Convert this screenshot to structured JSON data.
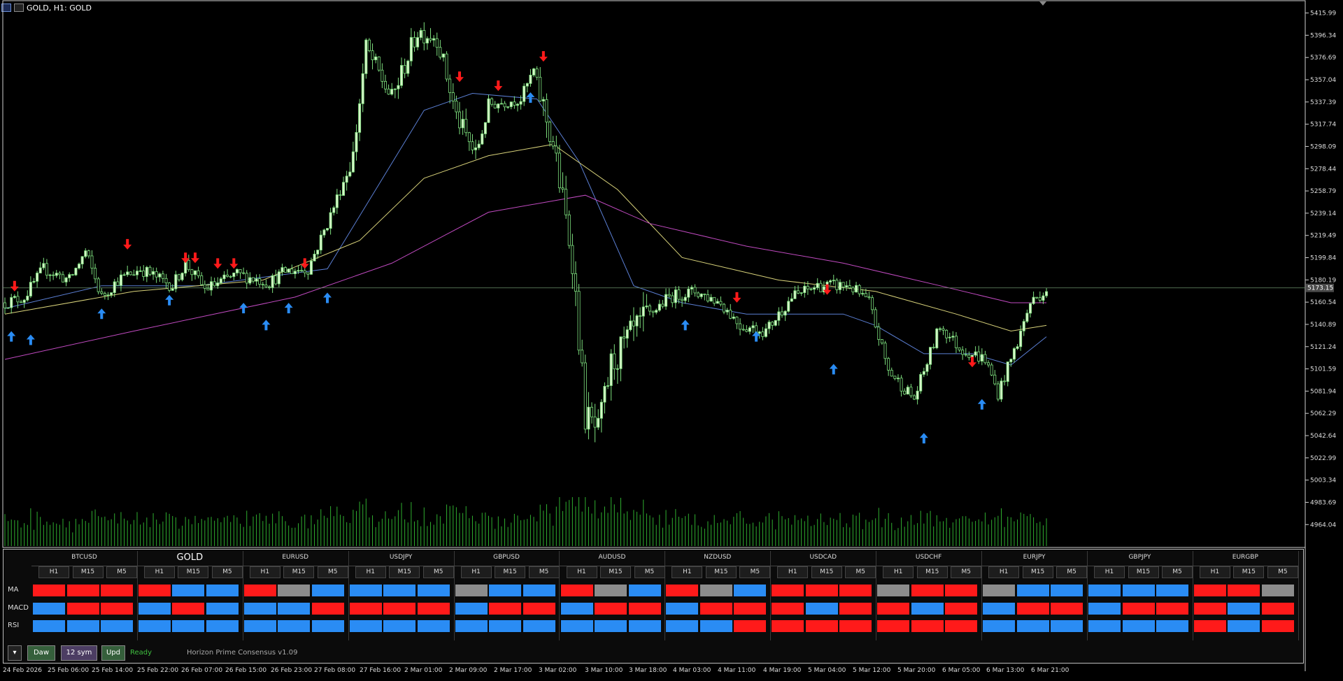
{
  "window": {
    "title": "GOLD, H1:  GOLD"
  },
  "chart_data": {
    "type": "candlestick",
    "symbol": "GOLD",
    "timeframe": "H1",
    "ylim": [
      4950,
      5425
    ],
    "y_ticks": [
      "5415.99",
      "5396.34",
      "5376.69",
      "5357.04",
      "5337.39",
      "5317.74",
      "5298.09",
      "5278.44",
      "5258.79",
      "5239.14",
      "5219.49",
      "5199.84",
      "5180.19",
      "5160.54",
      "5140.89",
      "5121.24",
      "5101.59",
      "5081.94",
      "5062.29",
      "5042.64",
      "5022.99",
      "5003.34",
      "4983.69",
      "4964.04"
    ],
    "current_price": "5173.15",
    "x_ticks": [
      "24 Feb 2026",
      "25 Feb 06:00",
      "25 Feb 14:00",
      "25 Feb 22:00",
      "26 Feb 07:00",
      "26 Feb 15:00",
      "26 Feb 23:00",
      "27 Feb 08:00",
      "27 Feb 16:00",
      "2 Mar 01:00",
      "2 Mar 09:00",
      "2 Mar 17:00",
      "3 Mar 02:00",
      "3 Mar 10:00",
      "3 Mar 18:00",
      "4 Mar 03:00",
      "4 Mar 11:00",
      "4 Mar 19:00",
      "5 Mar 04:00",
      "5 Mar 12:00",
      "5 Mar 20:00",
      "6 Mar 05:00",
      "6 Mar 13:00",
      "6 Mar 21:00"
    ],
    "anchors": [
      [
        0,
        5160
      ],
      [
        6,
        5165
      ],
      [
        12,
        5190
      ],
      [
        20,
        5180
      ],
      [
        25,
        5205
      ],
      [
        30,
        5165
      ],
      [
        35,
        5180
      ],
      [
        42,
        5190
      ],
      [
        52,
        5175
      ],
      [
        56,
        5195
      ],
      [
        62,
        5172
      ],
      [
        72,
        5185
      ],
      [
        82,
        5178
      ],
      [
        87,
        5188
      ],
      [
        94,
        5190
      ],
      [
        100,
        5230
      ],
      [
        108,
        5290
      ],
      [
        112,
        5385
      ],
      [
        120,
        5340
      ],
      [
        128,
        5400
      ],
      [
        134,
        5395
      ],
      [
        140,
        5325
      ],
      [
        146,
        5290
      ],
      [
        150,
        5335
      ],
      [
        160,
        5340
      ],
      [
        164,
        5365
      ],
      [
        170,
        5300
      ],
      [
        176,
        5200
      ],
      [
        180,
        5060
      ],
      [
        184,
        5045
      ],
      [
        188,
        5105
      ],
      [
        194,
        5130
      ],
      [
        200,
        5150
      ],
      [
        206,
        5165
      ],
      [
        214,
        5170
      ],
      [
        222,
        5160
      ],
      [
        228,
        5140
      ],
      [
        236,
        5135
      ],
      [
        244,
        5165
      ],
      [
        252,
        5175
      ],
      [
        262,
        5175
      ],
      [
        268,
        5160
      ],
      [
        274,
        5100
      ],
      [
        282,
        5075
      ],
      [
        290,
        5140
      ],
      [
        296,
        5120
      ],
      [
        304,
        5110
      ],
      [
        308,
        5080
      ],
      [
        314,
        5125
      ],
      [
        318,
        5160
      ],
      [
        323,
        5172
      ]
    ],
    "moving_averages": [
      {
        "color": "#5b7fd4",
        "pts": [
          [
            0,
            5155
          ],
          [
            30,
            5175
          ],
          [
            60,
            5175
          ],
          [
            100,
            5190
          ],
          [
            115,
            5260
          ],
          [
            130,
            5330
          ],
          [
            145,
            5345
          ],
          [
            165,
            5340
          ],
          [
            178,
            5285
          ],
          [
            195,
            5175
          ],
          [
            210,
            5160
          ],
          [
            230,
            5150
          ],
          [
            260,
            5150
          ],
          [
            270,
            5140
          ],
          [
            285,
            5115
          ],
          [
            300,
            5115
          ],
          [
            312,
            5105
          ],
          [
            323,
            5130
          ]
        ]
      },
      {
        "color": "#d8d27a",
        "pts": [
          [
            0,
            5150
          ],
          [
            40,
            5170
          ],
          [
            80,
            5180
          ],
          [
            110,
            5215
          ],
          [
            130,
            5270
          ],
          [
            150,
            5290
          ],
          [
            170,
            5300
          ],
          [
            190,
            5260
          ],
          [
            210,
            5200
          ],
          [
            240,
            5180
          ],
          [
            270,
            5170
          ],
          [
            295,
            5150
          ],
          [
            312,
            5135
          ],
          [
            323,
            5140
          ]
        ]
      },
      {
        "color": "#c04ac0",
        "pts": [
          [
            0,
            5110
          ],
          [
            40,
            5135
          ],
          [
            90,
            5165
          ],
          [
            120,
            5195
          ],
          [
            150,
            5240
          ],
          [
            180,
            5255
          ],
          [
            200,
            5230
          ],
          [
            230,
            5210
          ],
          [
            260,
            5195
          ],
          [
            290,
            5175
          ],
          [
            312,
            5160
          ],
          [
            323,
            5160
          ]
        ]
      }
    ],
    "buy_arrows": [
      [
        2,
        5130
      ],
      [
        8,
        5127
      ],
      [
        30,
        5150
      ],
      [
        51,
        5162
      ],
      [
        74,
        5155
      ],
      [
        81,
        5140
      ],
      [
        88,
        5155
      ],
      [
        100,
        5164
      ],
      [
        163,
        5341
      ],
      [
        211,
        5140
      ],
      [
        233,
        5130
      ],
      [
        257,
        5101
      ],
      [
        285,
        5040
      ],
      [
        303,
        5070
      ]
    ],
    "sell_arrows": [
      [
        3,
        5175
      ],
      [
        38,
        5212
      ],
      [
        56,
        5200
      ],
      [
        59,
        5200
      ],
      [
        66,
        5195
      ],
      [
        71,
        5195
      ],
      [
        93,
        5195
      ],
      [
        141,
        5360
      ],
      [
        153,
        5352
      ],
      [
        167,
        5378
      ],
      [
        227,
        5165
      ],
      [
        255,
        5172
      ],
      [
        300,
        5108
      ]
    ]
  },
  "panel": {
    "timeframes": [
      "H1",
      "M15",
      "M5"
    ],
    "row_labels": [
      "MA",
      "MACD",
      "RSI"
    ],
    "colors": {
      "R": "#ff1a1a",
      "B": "#2a8cf4",
      "G": "#8c8c8c"
    },
    "groups": [
      {
        "symbol": "BTCUSD",
        "rows": [
          "RRR",
          "BRR",
          "BBB"
        ]
      },
      {
        "symbol": "GOLD",
        "rows": [
          "RBB",
          "BRB",
          "BBB"
        ]
      },
      {
        "symbol": "EURUSD",
        "rows": [
          "RGB",
          "BBR",
          "BBB"
        ]
      },
      {
        "symbol": "USDJPY",
        "rows": [
          "BBB",
          "RRR",
          "BBB"
        ]
      },
      {
        "symbol": "GBPUSD",
        "rows": [
          "GBB",
          "BRR",
          "BBB"
        ]
      },
      {
        "symbol": "AUDUSD",
        "rows": [
          "RGB",
          "BRR",
          "BBB"
        ]
      },
      {
        "symbol": "NZDUSD",
        "rows": [
          "RGB",
          "BRR",
          "BBR"
        ]
      },
      {
        "symbol": "USDCAD",
        "rows": [
          "RRR",
          "RBR",
          "RRR"
        ]
      },
      {
        "symbol": "USDCHF",
        "rows": [
          "GRR",
          "RBR",
          "RRR"
        ]
      },
      {
        "symbol": "EURJPY",
        "rows": [
          "GBB",
          "BRR",
          "BBB"
        ]
      },
      {
        "symbol": "GBPJPY",
        "rows": [
          "BBB",
          "BRR",
          "BBB"
        ]
      },
      {
        "symbol": "EURGBP",
        "rows": [
          "RRG",
          "RBR",
          "RBR"
        ]
      }
    ],
    "buttons": {
      "dropdown": "▾",
      "draw": "Daw",
      "symbols": "12 sym",
      "update": "Upd"
    },
    "status": "Ready",
    "version": "Horizon Prime Consensus v1.09"
  }
}
